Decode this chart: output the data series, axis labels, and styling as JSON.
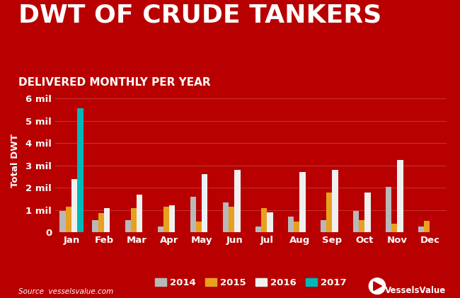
{
  "title": "DWT OF CRUDE TANKERS",
  "subtitle": "DELIVERED MONTHLY PER YEAR",
  "ylabel": "Total DWT",
  "source": "Source  vesselsvalue.com",
  "background_color": "#b80000",
  "plot_bg_color": "#b80000",
  "title_color": "#ffffff",
  "subtitle_color": "#ffffff",
  "ylabel_color": "#ffffff",
  "tick_color": "#ffffff",
  "grid_color": "#c83030",
  "months": [
    "Jan",
    "Feb",
    "Mar",
    "Apr",
    "May",
    "Jun",
    "Jul",
    "Aug",
    "Sep",
    "Oct",
    "Nov",
    "Dec"
  ],
  "years": [
    "2014",
    "2015",
    "2016",
    "2017"
  ],
  "colors": {
    "2014": "#b8b8b8",
    "2015": "#e8a020",
    "2016": "#f0f0f0",
    "2017": "#00b8b8"
  },
  "data": {
    "2014": [
      0.95,
      0.55,
      0.55,
      0.28,
      1.6,
      1.35,
      0.28,
      0.72,
      0.55,
      0.95,
      2.05,
      0.28
    ],
    "2015": [
      1.15,
      0.88,
      1.1,
      1.15,
      0.48,
      1.15,
      1.1,
      0.48,
      1.8,
      0.55,
      0.38,
      0.52
    ],
    "2016": [
      2.4,
      1.1,
      1.7,
      1.2,
      2.6,
      2.8,
      0.9,
      2.7,
      2.8,
      1.8,
      3.25,
      0.0
    ],
    "2017": [
      5.55,
      0.0,
      0.0,
      0.0,
      0.0,
      0.0,
      0.0,
      0.0,
      0.0,
      0.0,
      0.0,
      0.0
    ]
  },
  "ylim": [
    0,
    6.4
  ],
  "yticks": [
    0,
    1,
    2,
    3,
    4,
    5,
    6
  ],
  "ytick_labels": [
    "0",
    "1 mil",
    "2 mil",
    "3 mil",
    "4 mil",
    "5 mil",
    "6 mil"
  ],
  "title_fontsize": 26,
  "subtitle_fontsize": 11,
  "tick_fontsize": 9.5,
  "legend_fontsize": 9.5,
  "ylabel_fontsize": 9.5,
  "bar_width": 0.18
}
